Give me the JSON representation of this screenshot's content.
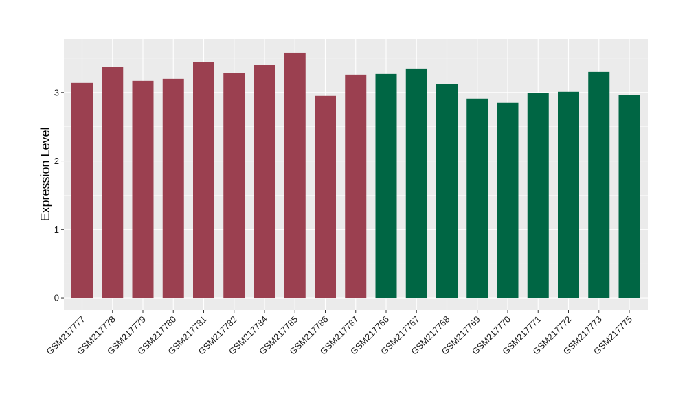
{
  "chart_data": {
    "type": "bar",
    "title": "",
    "xlabel": "",
    "ylabel": "Expression Level",
    "ylim": [
      -0.18,
      3.78
    ],
    "yticks": [
      0,
      1,
      2,
      3
    ],
    "grid": true,
    "categories": [
      "GSM217777",
      "GSM217778",
      "GSM217779",
      "GSM217780",
      "GSM217781",
      "GSM217782",
      "GSM217784",
      "GSM217785",
      "GSM217786",
      "GSM217787",
      "GSM217766",
      "GSM217767",
      "GSM217768",
      "GSM217769",
      "GSM217770",
      "GSM217771",
      "GSM217772",
      "GSM217773",
      "GSM217775"
    ],
    "values": [
      3.14,
      3.37,
      3.17,
      3.2,
      3.44,
      3.28,
      3.4,
      3.58,
      2.95,
      3.26,
      3.27,
      3.35,
      3.12,
      2.91,
      2.85,
      2.99,
      3.01,
      3.3,
      2.96
    ],
    "group_colors": [
      "#9b4050",
      "#9b4050",
      "#9b4050",
      "#9b4050",
      "#9b4050",
      "#9b4050",
      "#9b4050",
      "#9b4050",
      "#9b4050",
      "#9b4050",
      "#006644",
      "#006644",
      "#006644",
      "#006644",
      "#006644",
      "#006644",
      "#006644",
      "#006644",
      "#006644"
    ],
    "panel_background": "#ebebeb",
    "gridline_color": "#ffffff"
  }
}
